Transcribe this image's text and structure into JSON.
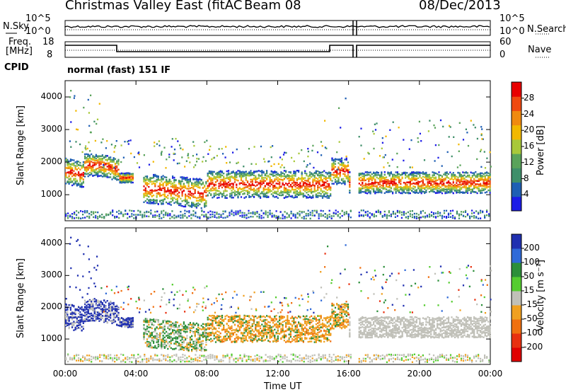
{
  "header": {
    "title": "Christmas Valley East (fitACF)",
    "beam": "Beam 08",
    "date": "08/Dec/2013"
  },
  "top_panels": {
    "nsky_label": "N.Sky",
    "nsky_ticks": [
      "10^5",
      "10^0"
    ],
    "nsearch_label": "N.Search",
    "nsearch_ticks": [
      "10^5",
      "10^0"
    ],
    "freq_label_1": "Freq.",
    "freq_label_2": "[MHz]",
    "freq_ticks": [
      "18",
      "8"
    ],
    "nave_label": "Nave",
    "nave_ticks": [
      "60",
      "0"
    ],
    "cpid_label": "CPID",
    "cpid_value": "normal (fast) 151 IF"
  },
  "chart_data": [
    {
      "type": "heatmap",
      "name": "Power",
      "ylabel": "Slant Range [km]",
      "yticks": [
        "1000",
        "2000",
        "3000",
        "4000"
      ],
      "ylim": [
        200,
        4500
      ],
      "colorbar_label": "Power [dB]",
      "colorbar_ticks": [
        "4",
        "8",
        "12",
        "16",
        "20",
        "24",
        "28"
      ],
      "colors": [
        "#1c1ce6",
        "#1f5fb4",
        "#3f8f6a",
        "#5aa35a",
        "#a8c83a",
        "#f2b800",
        "#f08a10",
        "#f04a10",
        "#e80000"
      ]
    },
    {
      "type": "heatmap",
      "name": "Velocity",
      "ylabel": "Slant Range [km]",
      "yticks": [
        "1000",
        "2000",
        "3000",
        "4000"
      ],
      "ylim": [
        200,
        4500
      ],
      "colorbar_label": "Velocity [m s⁻¹]",
      "colorbar_ticks": [
        "200",
        "100",
        "50",
        "15",
        "-15",
        "-50",
        "-100",
        "-200"
      ],
      "colors": [
        "#2030b0",
        "#2f6ad8",
        "#2c8f3a",
        "#55cc30",
        "#c0c0b8",
        "#f0a020",
        "#f07010",
        "#e83010",
        "#e00000"
      ]
    }
  ],
  "xaxis": {
    "ticks": [
      "00:00",
      "04:00",
      "08:00",
      "12:00",
      "16:00",
      "20:00",
      "00:00"
    ],
    "label": "Time UT"
  }
}
